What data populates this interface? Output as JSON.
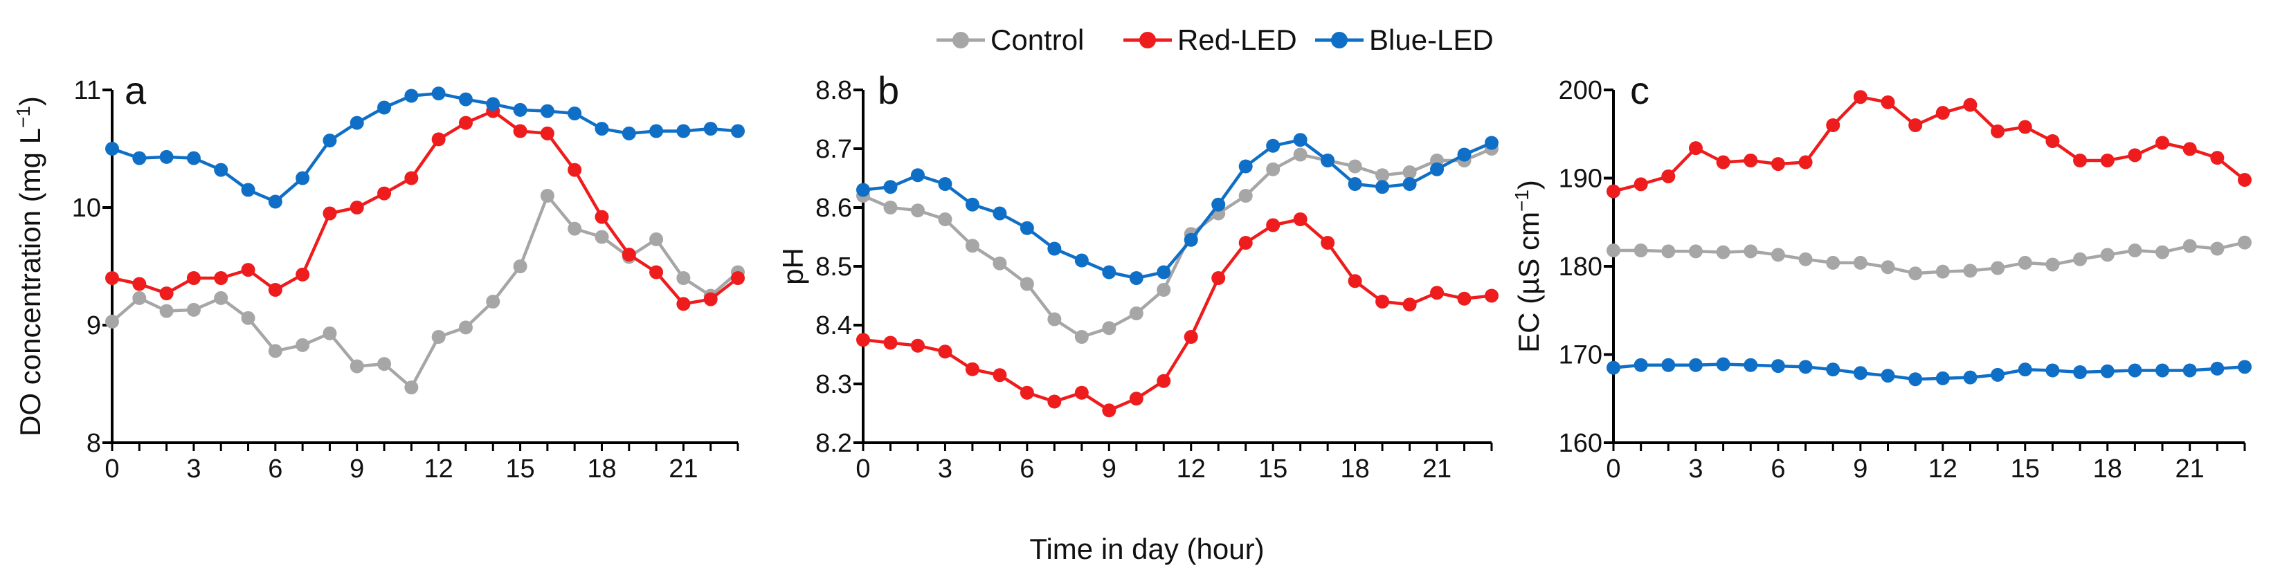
{
  "legend": {
    "entries": [
      {
        "name": "Control",
        "color": "#a6a6a6"
      },
      {
        "name": "Red-LED",
        "color": "#ee1c1c"
      },
      {
        "name": "Blue-LED",
        "color": "#0f6fc6"
      }
    ]
  },
  "xlabel": "Time in day (hour)",
  "chart_data": [
    {
      "type": "line",
      "panel": "a",
      "title": "",
      "xlabel": "Time in day (hour)",
      "ylabel_main": "DO concentration (mg L",
      "ylabel_sup": "−1",
      "ylabel_close": ")",
      "xlim": [
        0,
        23
      ],
      "ylim": [
        8,
        11
      ],
      "xticks": [
        0,
        3,
        6,
        9,
        12,
        15,
        18,
        21
      ],
      "yticks": [
        8,
        9,
        10,
        11
      ],
      "grid": false,
      "x": [
        0,
        1,
        2,
        3,
        4,
        5,
        6,
        7,
        8,
        9,
        10,
        11,
        12,
        13,
        14,
        15,
        16,
        17,
        18,
        19,
        20,
        21,
        22,
        23
      ],
      "series": [
        {
          "name": "Control",
          "values": [
            9.03,
            9.23,
            9.12,
            9.13,
            9.23,
            9.06,
            8.78,
            8.83,
            8.93,
            8.65,
            8.67,
            8.47,
            8.9,
            8.98,
            9.2,
            9.5,
            10.1,
            9.82,
            9.75,
            9.58,
            9.73,
            9.4,
            9.25,
            9.45
          ]
        },
        {
          "name": "Red-LED",
          "values": [
            9.4,
            9.35,
            9.27,
            9.4,
            9.4,
            9.47,
            9.3,
            9.43,
            9.95,
            10.0,
            10.12,
            10.25,
            10.58,
            10.72,
            10.82,
            10.65,
            10.63,
            10.32,
            9.92,
            9.6,
            9.45,
            9.18,
            9.22,
            9.4
          ]
        },
        {
          "name": "Blue-LED",
          "values": [
            10.5,
            10.42,
            10.43,
            10.42,
            10.32,
            10.15,
            10.05,
            10.25,
            10.57,
            10.72,
            10.85,
            10.95,
            10.97,
            10.92,
            10.88,
            10.83,
            10.82,
            10.8,
            10.67,
            10.63,
            10.65,
            10.65,
            10.67,
            10.65
          ]
        }
      ]
    },
    {
      "type": "line",
      "panel": "b",
      "title": "",
      "xlabel": "Time in day (hour)",
      "ylabel_main": "pH",
      "ylabel_sup": "",
      "ylabel_close": "",
      "xlim": [
        0,
        23
      ],
      "ylim": [
        8.2,
        8.8
      ],
      "xticks": [
        0,
        3,
        6,
        9,
        12,
        15,
        18,
        21
      ],
      "yticks": [
        8.2,
        8.3,
        8.4,
        8.5,
        8.6,
        8.7,
        8.8
      ],
      "ytick_labels": [
        "8.2",
        "8.3",
        "8.4",
        "8.5",
        "8.6",
        "8.7",
        "8.8"
      ],
      "grid": false,
      "x": [
        0,
        1,
        2,
        3,
        4,
        5,
        6,
        7,
        8,
        9,
        10,
        11,
        12,
        13,
        14,
        15,
        16,
        17,
        18,
        19,
        20,
        21,
        22,
        23
      ],
      "series": [
        {
          "name": "Control",
          "values": [
            8.62,
            8.6,
            8.595,
            8.58,
            8.535,
            8.505,
            8.47,
            8.41,
            8.38,
            8.395,
            8.42,
            8.46,
            8.555,
            8.59,
            8.62,
            8.665,
            8.69,
            8.68,
            8.67,
            8.655,
            8.66,
            8.68,
            8.68,
            8.7
          ]
        },
        {
          "name": "Red-LED",
          "values": [
            8.375,
            8.37,
            8.365,
            8.355,
            8.325,
            8.315,
            8.285,
            8.27,
            8.285,
            8.255,
            8.275,
            8.305,
            8.38,
            8.48,
            8.54,
            8.57,
            8.58,
            8.54,
            8.475,
            8.44,
            8.435,
            8.455,
            8.445,
            8.45
          ]
        },
        {
          "name": "Blue-LED",
          "values": [
            8.63,
            8.635,
            8.655,
            8.64,
            8.605,
            8.59,
            8.565,
            8.53,
            8.51,
            8.49,
            8.48,
            8.49,
            8.545,
            8.605,
            8.67,
            8.705,
            8.715,
            8.68,
            8.64,
            8.635,
            8.64,
            8.665,
            8.69,
            8.71
          ]
        }
      ]
    },
    {
      "type": "line",
      "panel": "c",
      "title": "",
      "xlabel": "Time in day (hour)",
      "ylabel_main": "EC (µS cm",
      "ylabel_sup": "−1",
      "ylabel_close": ")",
      "xlim": [
        0,
        23
      ],
      "ylim": [
        160,
        200
      ],
      "xticks": [
        0,
        3,
        6,
        9,
        12,
        15,
        18,
        21
      ],
      "yticks": [
        160,
        170,
        180,
        190,
        200
      ],
      "grid": false,
      "x": [
        0,
        1,
        2,
        3,
        4,
        5,
        6,
        7,
        8,
        9,
        10,
        11,
        12,
        13,
        14,
        15,
        16,
        17,
        18,
        19,
        20,
        21,
        22,
        23
      ],
      "series": [
        {
          "name": "Control",
          "values": [
            181.8,
            181.8,
            181.7,
            181.7,
            181.6,
            181.7,
            181.3,
            180.8,
            180.4,
            180.4,
            179.9,
            179.2,
            179.4,
            179.5,
            179.8,
            180.4,
            180.2,
            180.8,
            181.3,
            181.8,
            181.6,
            182.3,
            182.0,
            182.7
          ]
        },
        {
          "name": "Red-LED",
          "values": [
            188.5,
            189.3,
            190.2,
            193.4,
            191.8,
            192.0,
            191.6,
            191.8,
            196.0,
            199.2,
            198.6,
            196.0,
            197.4,
            198.3,
            195.3,
            195.8,
            194.2,
            192.0,
            192.0,
            192.6,
            194.0,
            193.3,
            192.3,
            189.8
          ]
        },
        {
          "name": "Blue-LED",
          "values": [
            168.5,
            168.8,
            168.8,
            168.8,
            168.9,
            168.8,
            168.7,
            168.6,
            168.3,
            167.9,
            167.6,
            167.2,
            167.3,
            167.4,
            167.7,
            168.3,
            168.2,
            168.0,
            168.1,
            168.2,
            168.2,
            168.2,
            168.4,
            168.6
          ]
        }
      ]
    }
  ]
}
